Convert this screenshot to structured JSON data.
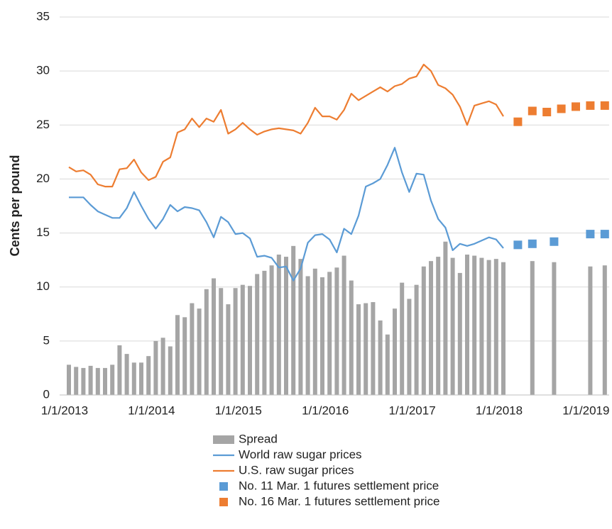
{
  "chart_data": {
    "type": "combo",
    "ylabel": "Cents per pound",
    "x": [
      "2013-01",
      "2013-02",
      "2013-03",
      "2013-04",
      "2013-05",
      "2013-06",
      "2013-07",
      "2013-08",
      "2013-09",
      "2013-10",
      "2013-11",
      "2013-12",
      "2014-01",
      "2014-02",
      "2014-03",
      "2014-04",
      "2014-05",
      "2014-06",
      "2014-07",
      "2014-08",
      "2014-09",
      "2014-10",
      "2014-11",
      "2014-12",
      "2015-01",
      "2015-02",
      "2015-03",
      "2015-04",
      "2015-05",
      "2015-06",
      "2015-07",
      "2015-08",
      "2015-09",
      "2015-10",
      "2015-11",
      "2015-12",
      "2016-01",
      "2016-02",
      "2016-03",
      "2016-04",
      "2016-05",
      "2016-06",
      "2016-07",
      "2016-08",
      "2016-09",
      "2016-10",
      "2016-11",
      "2016-12",
      "2017-01",
      "2017-02",
      "2017-03",
      "2017-04",
      "2017-05",
      "2017-06",
      "2017-07",
      "2017-08",
      "2017-09",
      "2017-10",
      "2017-11",
      "2017-12",
      "2018-01",
      "2018-02",
      "2018-03",
      "2018-04",
      "2018-05",
      "2018-06",
      "2018-07",
      "2018-08",
      "2018-09",
      "2018-10",
      "2018-11",
      "2018-12",
      "2019-01",
      "2019-02",
      "2019-03"
    ],
    "xticks": [
      {
        "value": "2013-01",
        "label": "1/1/2013"
      },
      {
        "value": "2014-01",
        "label": "1/1/2014"
      },
      {
        "value": "2015-01",
        "label": "1/1/2015"
      },
      {
        "value": "2016-01",
        "label": "1/1/2016"
      },
      {
        "value": "2017-01",
        "label": "1/1/2017"
      },
      {
        "value": "2018-01",
        "label": "1/1/2018"
      },
      {
        "value": "2019-01",
        "label": "1/1/2019"
      }
    ],
    "ylim": [
      0,
      35
    ],
    "yticks": [
      0,
      5,
      10,
      15,
      20,
      25,
      30,
      35
    ],
    "grid": true,
    "series": [
      {
        "name": "Spread",
        "style": "bar",
        "color": "#a5a5a5",
        "values": [
          2.8,
          2.6,
          2.5,
          2.7,
          2.5,
          2.5,
          2.8,
          4.6,
          3.8,
          3.0,
          3.0,
          3.6,
          5.0,
          5.3,
          4.5,
          7.4,
          7.2,
          8.5,
          8.0,
          9.8,
          10.8,
          9.9,
          8.4,
          9.9,
          10.2,
          10.1,
          11.2,
          11.5,
          12.0,
          13.0,
          12.8,
          13.8,
          12.6,
          11.0,
          11.7,
          10.9,
          11.4,
          11.8,
          12.9,
          10.6,
          8.4,
          8.5,
          8.6,
          6.9,
          5.6,
          8.0,
          10.4,
          8.9,
          10.2,
          11.9,
          12.4,
          12.8,
          14.2,
          12.7,
          11.3,
          13.0,
          12.9,
          12.7,
          12.5,
          12.6,
          12.3,
          null,
          null,
          null,
          12.4,
          null,
          null,
          12.3,
          null,
          null,
          null,
          null,
          11.9,
          null,
          12.0
        ]
      },
      {
        "name": "World raw sugar prices",
        "style": "line",
        "color": "#5b9bd5",
        "values": [
          18.3,
          18.3,
          18.3,
          17.6,
          17.0,
          16.7,
          16.4,
          16.4,
          17.3,
          18.8,
          17.5,
          16.3,
          15.4,
          16.3,
          17.6,
          17.0,
          17.4,
          17.3,
          17.1,
          16.0,
          14.6,
          16.5,
          16.0,
          14.9,
          15.0,
          14.5,
          12.8,
          12.9,
          12.7,
          11.8,
          11.9,
          10.6,
          11.7,
          14.1,
          14.8,
          14.9,
          14.4,
          13.2,
          15.4,
          14.9,
          16.6,
          19.3,
          19.6,
          20.0,
          21.3,
          22.9,
          20.6,
          18.8,
          20.5,
          20.4,
          18.0,
          16.3,
          15.5,
          13.4,
          14.0,
          13.8,
          14.0,
          14.3,
          14.6,
          14.4,
          13.6,
          null,
          null,
          null,
          null,
          null,
          null,
          null,
          null,
          null,
          null,
          null,
          null,
          null,
          null
        ]
      },
      {
        "name": "U.S. raw sugar prices",
        "style": "line",
        "color": "#ed7d31",
        "values": [
          21.1,
          20.7,
          20.8,
          20.4,
          19.5,
          19.3,
          19.3,
          20.9,
          21.0,
          21.8,
          20.6,
          19.9,
          20.2,
          21.6,
          22.0,
          24.3,
          24.6,
          25.6,
          24.8,
          25.6,
          25.3,
          26.4,
          24.2,
          24.6,
          25.2,
          24.6,
          24.1,
          24.4,
          24.6,
          24.7,
          24.6,
          24.5,
          24.2,
          25.2,
          26.6,
          25.8,
          25.8,
          25.5,
          26.4,
          27.9,
          27.3,
          27.7,
          28.1,
          28.5,
          28.1,
          28.6,
          28.8,
          29.3,
          29.5,
          30.6,
          30.0,
          28.7,
          28.4,
          27.8,
          26.7,
          25.0,
          26.8,
          27.0,
          27.2,
          26.9,
          25.8,
          null,
          null,
          null,
          null,
          null,
          null,
          null,
          null,
          null,
          null,
          null,
          null,
          null,
          null
        ]
      },
      {
        "name": "No. 11 Mar. 1 futures settlement price",
        "style": "marker",
        "color": "#5b9bd5",
        "values": [
          null,
          null,
          null,
          null,
          null,
          null,
          null,
          null,
          null,
          null,
          null,
          null,
          null,
          null,
          null,
          null,
          null,
          null,
          null,
          null,
          null,
          null,
          null,
          null,
          null,
          null,
          null,
          null,
          null,
          null,
          null,
          null,
          null,
          null,
          null,
          null,
          null,
          null,
          null,
          null,
          null,
          null,
          null,
          null,
          null,
          null,
          null,
          null,
          null,
          null,
          null,
          null,
          null,
          null,
          null,
          null,
          null,
          null,
          null,
          null,
          null,
          null,
          13.9,
          null,
          14.0,
          null,
          null,
          14.2,
          null,
          null,
          null,
          null,
          14.9,
          null,
          14.9
        ]
      },
      {
        "name": "No. 16 Mar. 1 futures settlement price",
        "style": "marker",
        "color": "#ed7d31",
        "values": [
          null,
          null,
          null,
          null,
          null,
          null,
          null,
          null,
          null,
          null,
          null,
          null,
          null,
          null,
          null,
          null,
          null,
          null,
          null,
          null,
          null,
          null,
          null,
          null,
          null,
          null,
          null,
          null,
          null,
          null,
          null,
          null,
          null,
          null,
          null,
          null,
          null,
          null,
          null,
          null,
          null,
          null,
          null,
          null,
          null,
          null,
          null,
          null,
          null,
          null,
          null,
          null,
          null,
          null,
          null,
          null,
          null,
          null,
          null,
          null,
          null,
          null,
          25.3,
          null,
          26.3,
          null,
          26.2,
          null,
          26.5,
          null,
          26.7,
          null,
          26.8,
          null,
          26.8
        ]
      }
    ]
  }
}
